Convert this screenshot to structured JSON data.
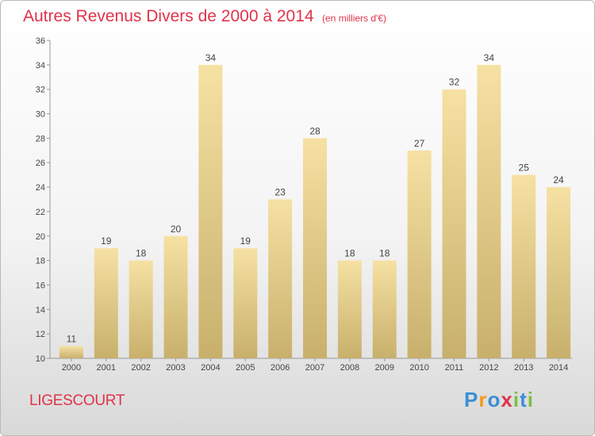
{
  "header": {
    "title": "Autres Revenus Divers de 2000 à 2014",
    "unit": "(en milliers d'€)"
  },
  "footer": {
    "commune": "LIGESCOURT",
    "logo": "Proxiti"
  },
  "colors": {
    "title": "#e0334a",
    "bar_light": "#f6e1a3",
    "bar_dark": "#c8b06c"
  },
  "chart_data": {
    "type": "bar",
    "title": "Autres Revenus Divers de 2000 à 2014",
    "subtitle": "(en milliers d'€)",
    "xlabel": "",
    "ylabel": "",
    "categories": [
      "2000",
      "2001",
      "2002",
      "2003",
      "2004",
      "2005",
      "2006",
      "2007",
      "2008",
      "2009",
      "2010",
      "2011",
      "2012",
      "2013",
      "2014"
    ],
    "values": [
      11,
      19,
      18,
      20,
      34,
      19,
      23,
      28,
      18,
      18,
      27,
      32,
      34,
      25,
      24
    ],
    "ylim": [
      10,
      36
    ],
    "yticks": [
      10,
      12,
      14,
      16,
      18,
      20,
      22,
      24,
      26,
      28,
      30,
      32,
      34,
      36
    ],
    "grid": false,
    "data_labels": true
  }
}
